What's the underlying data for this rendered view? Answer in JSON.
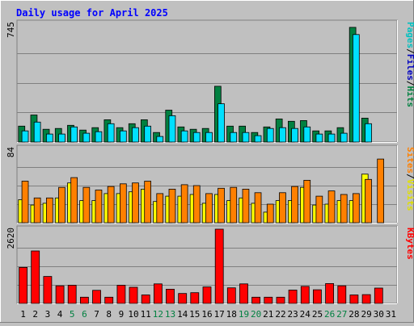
{
  "chart_data": {
    "title": "Daily usage for April 2025",
    "type": "bar",
    "categories": [
      "1",
      "2",
      "3",
      "4",
      "5",
      "6",
      "7",
      "8",
      "9",
      "10",
      "11",
      "12",
      "13",
      "14",
      "15",
      "16",
      "17",
      "18",
      "19",
      "20",
      "21",
      "22",
      "23",
      "24",
      "25",
      "26",
      "27",
      "28",
      "29",
      "30",
      "31"
    ],
    "weekend_days": [
      "5",
      "6",
      "12",
      "13",
      "19",
      "20",
      "26",
      "27"
    ],
    "colors": {
      "background": "#c0c0c0",
      "hits": "#008040",
      "files": "#00e0ff",
      "sites": "#ffff00",
      "visits": "#ff8000",
      "kbytes": "#ff0000",
      "title": "#0000ff",
      "weekend_label": "#008040",
      "gridline": "#808080"
    },
    "panels": [
      {
        "id": "hits-files",
        "max_label": "745",
        "ymax": 745,
        "legend": [
          {
            "label": "Pages",
            "color": "#00c0c0"
          },
          {
            "label": "/",
            "color": "#000000"
          },
          {
            "label": "Files",
            "color": "#0000c0"
          },
          {
            "label": "/",
            "color": "#000000"
          },
          {
            "label": "Hits",
            "color": "#008040"
          }
        ],
        "series": [
          {
            "key": "hits",
            "values": [
              100,
              170,
              80,
              85,
              105,
              75,
              90,
              140,
              90,
              115,
              140,
              60,
              200,
              95,
              80,
              85,
              350,
              100,
              100,
              60,
              95,
              145,
              130,
              135,
              70,
              70,
              90,
              720,
              150,
              0,
              0
            ]
          },
          {
            "key": "files",
            "values": [
              70,
              125,
              50,
              50,
              95,
              55,
              65,
              115,
              70,
              90,
              100,
              35,
              165,
              70,
              60,
              60,
              240,
              60,
              60,
              40,
              85,
              90,
              85,
              95,
              50,
              50,
              55,
              675,
              115,
              0,
              0
            ]
          }
        ]
      },
      {
        "id": "sites-visits",
        "max_label": "84",
        "ymax": 84,
        "legend": [
          {
            "label": "Sites",
            "color": "#ff8000"
          },
          {
            "label": "/",
            "color": "#000000"
          },
          {
            "label": "Visits",
            "color": "#e0e000"
          }
        ],
        "series": [
          {
            "key": "sites",
            "values": [
              26,
              20,
              22,
              28,
              45,
              25,
              25,
              33,
              33,
              35,
              38,
              24,
              30,
              30,
              32,
              22,
              32,
              25,
              28,
              22,
              12,
              25,
              25,
              40,
              20,
              21,
              25,
              25,
              55,
              0,
              0
            ]
          },
          {
            "key": "visits",
            "values": [
              47,
              28,
              28,
              40,
              51,
              40,
              37,
              41,
              44,
              45,
              47,
              33,
              38,
              43,
              42,
              33,
              39,
              40,
              38,
              34,
              21,
              34,
              41,
              48,
              30,
              36,
              32,
              33,
              49,
              72,
              0
            ]
          }
        ]
      },
      {
        "id": "kbytes",
        "max_label": "2620",
        "ymax": 2620,
        "legend": [
          {
            "label": "KBytes",
            "color": "#ff0000"
          }
        ],
        "series": [
          {
            "key": "kbytes",
            "values": [
              1270,
              1850,
              950,
              620,
              640,
              220,
              460,
              220,
              640,
              570,
              300,
              690,
              500,
              350,
              380,
              580,
              2620,
              550,
              690,
              220,
              220,
              220,
              470,
              600,
              480,
              700,
              620,
              300,
              310,
              540,
              0
            ]
          }
        ]
      }
    ]
  }
}
